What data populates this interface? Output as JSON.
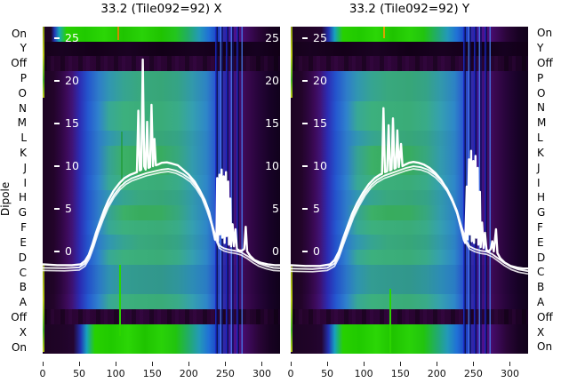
{
  "figure": {
    "background": "#ffffff"
  },
  "chart_data": {
    "type": "heatmap",
    "description": "Two dipole-test waterfall heatmaps with overlaid white beam power curves and an inner white value axis",
    "ylabel": "Dipole",
    "y_categories": [
      "On",
      "Y",
      "Off",
      "P",
      "O",
      "N",
      "M",
      "L",
      "K",
      "J",
      "I",
      "H",
      "G",
      "F",
      "E",
      "D",
      "C",
      "B",
      "A",
      "Off",
      "X",
      "On"
    ],
    "x_ticks": [
      0,
      50,
      100,
      150,
      200,
      250,
      300
    ],
    "x_range": [
      0,
      325
    ],
    "inner_y_ticks": [
      25,
      20,
      15,
      10,
      5,
      0
    ],
    "grid": false,
    "colors": {
      "background_dark": "#14011c",
      "purple_edge": "#470f70",
      "blue": "#2454cc",
      "teal_center": "#37a678",
      "green_band": "#22cc05",
      "rfi_stripe_blue": "#3c78f0",
      "edge_stripe_yellow": "#b8c816",
      "curve": "#ffffff",
      "text": "#000000",
      "inner_tick_text": "#ffffff"
    },
    "panels": [
      {
        "title": "33.2 (Tile092=92) X",
        "right_inner_labels": true,
        "row_types": [
          "green-a",
          "dark",
          "off",
          "main-a",
          "main-a",
          "main-b",
          "main-b",
          "main-a",
          "main-c",
          "main-c",
          "main-b",
          "main-a",
          "main-c",
          "main-b",
          "main-a",
          "main-b",
          "main-d",
          "main-d",
          "main-b",
          "off",
          "green-b",
          "green-b"
        ],
        "line_main": [
          [
            0,
            -1.5
          ],
          [
            20,
            -1.6
          ],
          [
            40,
            -1.6
          ],
          [
            52,
            -1.5
          ],
          [
            58,
            -1.1
          ],
          [
            63,
            -0.4
          ],
          [
            68,
            0.8
          ],
          [
            73,
            2.2
          ],
          [
            78,
            3.4
          ],
          [
            84,
            4.8
          ],
          [
            90,
            6
          ],
          [
            97,
            7.1
          ],
          [
            105,
            8
          ],
          [
            112,
            8.6
          ],
          [
            120,
            9
          ],
          [
            126,
            9.2
          ],
          [
            129,
            9.3
          ],
          [
            131,
            16.5
          ],
          [
            133,
            9.5
          ],
          [
            135,
            9.6
          ],
          [
            137,
            22.5
          ],
          [
            139,
            10
          ],
          [
            141,
            9.6
          ],
          [
            143,
            15.2
          ],
          [
            145,
            9.8
          ],
          [
            147,
            9.9
          ],
          [
            149,
            17.2
          ],
          [
            151,
            10
          ],
          [
            153,
            13.2
          ],
          [
            155,
            10.1
          ],
          [
            158,
            10.2
          ],
          [
            163,
            10.4
          ],
          [
            170,
            10.45
          ],
          [
            177,
            10.3
          ],
          [
            185,
            10.1
          ],
          [
            192,
            9.6
          ],
          [
            200,
            9
          ],
          [
            208,
            8.2
          ],
          [
            215,
            7.2
          ],
          [
            222,
            6
          ],
          [
            228,
            4.6
          ],
          [
            233,
            2.6
          ],
          [
            236,
            1.4
          ],
          [
            238,
            2
          ],
          [
            239,
            8.6
          ],
          [
            240,
            1.2
          ],
          [
            242,
            9
          ],
          [
            243,
            2
          ],
          [
            245,
            9.6
          ],
          [
            246,
            1.6
          ],
          [
            248,
            8.8
          ],
          [
            249,
            1
          ],
          [
            251,
            9.3
          ],
          [
            252,
            1.8
          ],
          [
            254,
            8.2
          ],
          [
            255,
            0.8
          ],
          [
            257,
            6.2
          ],
          [
            258,
            0.6
          ],
          [
            260,
            3.2
          ],
          [
            262,
            0.6
          ],
          [
            264,
            2.6
          ],
          [
            266,
            0.3
          ],
          [
            269,
            0.1
          ],
          [
            273,
            0.1
          ],
          [
            276,
            0.3
          ],
          [
            278,
            2.9
          ],
          [
            280,
            0
          ],
          [
            284,
            -0.5
          ],
          [
            290,
            -1
          ],
          [
            298,
            -1.3
          ],
          [
            308,
            -1.5
          ],
          [
            318,
            -1.6
          ],
          [
            325,
            -1.6
          ]
        ],
        "line_smooth": [
          [
            0,
            -1.6
          ],
          [
            30,
            -1.65
          ],
          [
            50,
            -1.55
          ],
          [
            58,
            -1.1
          ],
          [
            64,
            -0.2
          ],
          [
            70,
            1.2
          ],
          [
            76,
            2.8
          ],
          [
            83,
            4.4
          ],
          [
            90,
            5.8
          ],
          [
            98,
            7
          ],
          [
            106,
            7.9
          ],
          [
            114,
            8.5
          ],
          [
            122,
            8.9
          ],
          [
            132,
            9.2
          ],
          [
            142,
            9.5
          ],
          [
            152,
            9.7
          ],
          [
            162,
            9.9
          ],
          [
            172,
            10
          ],
          [
            182,
            9.8
          ],
          [
            192,
            9.4
          ],
          [
            202,
            8.8
          ],
          [
            210,
            8
          ],
          [
            218,
            6.9
          ],
          [
            225,
            5.4
          ],
          [
            231,
            3.8
          ],
          [
            237,
            2
          ],
          [
            242,
            1
          ],
          [
            248,
            0.7
          ],
          [
            256,
            0.5
          ],
          [
            264,
            0.4
          ],
          [
            272,
            0.2
          ],
          [
            280,
            -0.2
          ],
          [
            288,
            -0.7
          ],
          [
            296,
            -1.1
          ],
          [
            306,
            -1.4
          ],
          [
            316,
            -1.6
          ],
          [
            325,
            -1.65
          ]
        ]
      },
      {
        "title": "33.2 (Tile092=92) Y",
        "right_inner_labels": false,
        "row_types": [
          "green-b",
          "dark",
          "off",
          "main-a",
          "main-a",
          "main-b",
          "main-b",
          "main-a",
          "main-c",
          "main-c",
          "main-b",
          "main-a",
          "main-c",
          "main-b",
          "main-a",
          "main-b",
          "main-d",
          "main-d",
          "main-b",
          "off",
          "green-b",
          "green-b"
        ],
        "line_main": [
          [
            0,
            -1.6
          ],
          [
            20,
            -1.7
          ],
          [
            40,
            -1.7
          ],
          [
            54,
            -1.5
          ],
          [
            60,
            -1
          ],
          [
            66,
            0
          ],
          [
            72,
            1.6
          ],
          [
            78,
            3
          ],
          [
            84,
            4.4
          ],
          [
            91,
            5.7
          ],
          [
            99,
            6.9
          ],
          [
            107,
            7.9
          ],
          [
            115,
            8.6
          ],
          [
            122,
            9
          ],
          [
            125,
            9.1
          ],
          [
            127,
            16.8
          ],
          [
            129,
            9.3
          ],
          [
            132,
            9.4
          ],
          [
            134,
            14.8
          ],
          [
            136,
            9.5
          ],
          [
            138,
            9.6
          ],
          [
            140,
            15.6
          ],
          [
            142,
            9.7
          ],
          [
            144,
            9.8
          ],
          [
            146,
            14.2
          ],
          [
            148,
            9.9
          ],
          [
            151,
            12.6
          ],
          [
            153,
            10
          ],
          [
            157,
            10.2
          ],
          [
            162,
            10.4
          ],
          [
            168,
            10.5
          ],
          [
            175,
            10.4
          ],
          [
            182,
            10.2
          ],
          [
            190,
            9.8
          ],
          [
            198,
            9.2
          ],
          [
            206,
            8.4
          ],
          [
            213,
            7.4
          ],
          [
            220,
            6.2
          ],
          [
            227,
            4.8
          ],
          [
            233,
            2.8
          ],
          [
            237,
            1.4
          ],
          [
            239,
            1
          ],
          [
            241,
            7.6
          ],
          [
            242,
            1.4
          ],
          [
            244,
            10.8
          ],
          [
            245,
            2
          ],
          [
            247,
            11.8
          ],
          [
            248,
            1.2
          ],
          [
            250,
            10.6
          ],
          [
            251,
            1
          ],
          [
            253,
            11.2
          ],
          [
            254,
            1.6
          ],
          [
            256,
            9.8
          ],
          [
            257,
            0.8
          ],
          [
            259,
            7
          ],
          [
            260,
            0.5
          ],
          [
            262,
            3.4
          ],
          [
            264,
            0.4
          ],
          [
            266,
            2.2
          ],
          [
            268,
            0.2
          ],
          [
            271,
            0
          ],
          [
            274,
            0.3
          ],
          [
            276,
            1.2
          ],
          [
            278,
            0
          ],
          [
            281,
            2.6
          ],
          [
            283,
            -0.2
          ],
          [
            287,
            -0.8
          ],
          [
            293,
            -1.3
          ],
          [
            301,
            -1.7
          ],
          [
            310,
            -1.9
          ],
          [
            318,
            -2
          ],
          [
            325,
            -2
          ]
        ],
        "line_smooth": [
          [
            0,
            -1.7
          ],
          [
            30,
            -1.75
          ],
          [
            50,
            -1.6
          ],
          [
            60,
            -1.1
          ],
          [
            66,
            -0.1
          ],
          [
            72,
            1.4
          ],
          [
            79,
            3
          ],
          [
            86,
            4.6
          ],
          [
            94,
            6
          ],
          [
            102,
            7.2
          ],
          [
            110,
            8.1
          ],
          [
            118,
            8.7
          ],
          [
            128,
            9.2
          ],
          [
            138,
            9.5
          ],
          [
            148,
            9.8
          ],
          [
            158,
            10.1
          ],
          [
            168,
            10.3
          ],
          [
            178,
            10.2
          ],
          [
            188,
            9.9
          ],
          [
            198,
            9.3
          ],
          [
            206,
            8.6
          ],
          [
            214,
            7.7
          ],
          [
            221,
            6.5
          ],
          [
            228,
            5
          ],
          [
            234,
            3.2
          ],
          [
            240,
            1.6
          ],
          [
            245,
            0.9
          ],
          [
            252,
            0.6
          ],
          [
            260,
            0.4
          ],
          [
            268,
            0.3
          ],
          [
            276,
            0
          ],
          [
            284,
            -0.5
          ],
          [
            292,
            -1
          ],
          [
            302,
            -1.5
          ],
          [
            312,
            -1.8
          ],
          [
            325,
            -2
          ]
        ]
      }
    ]
  }
}
